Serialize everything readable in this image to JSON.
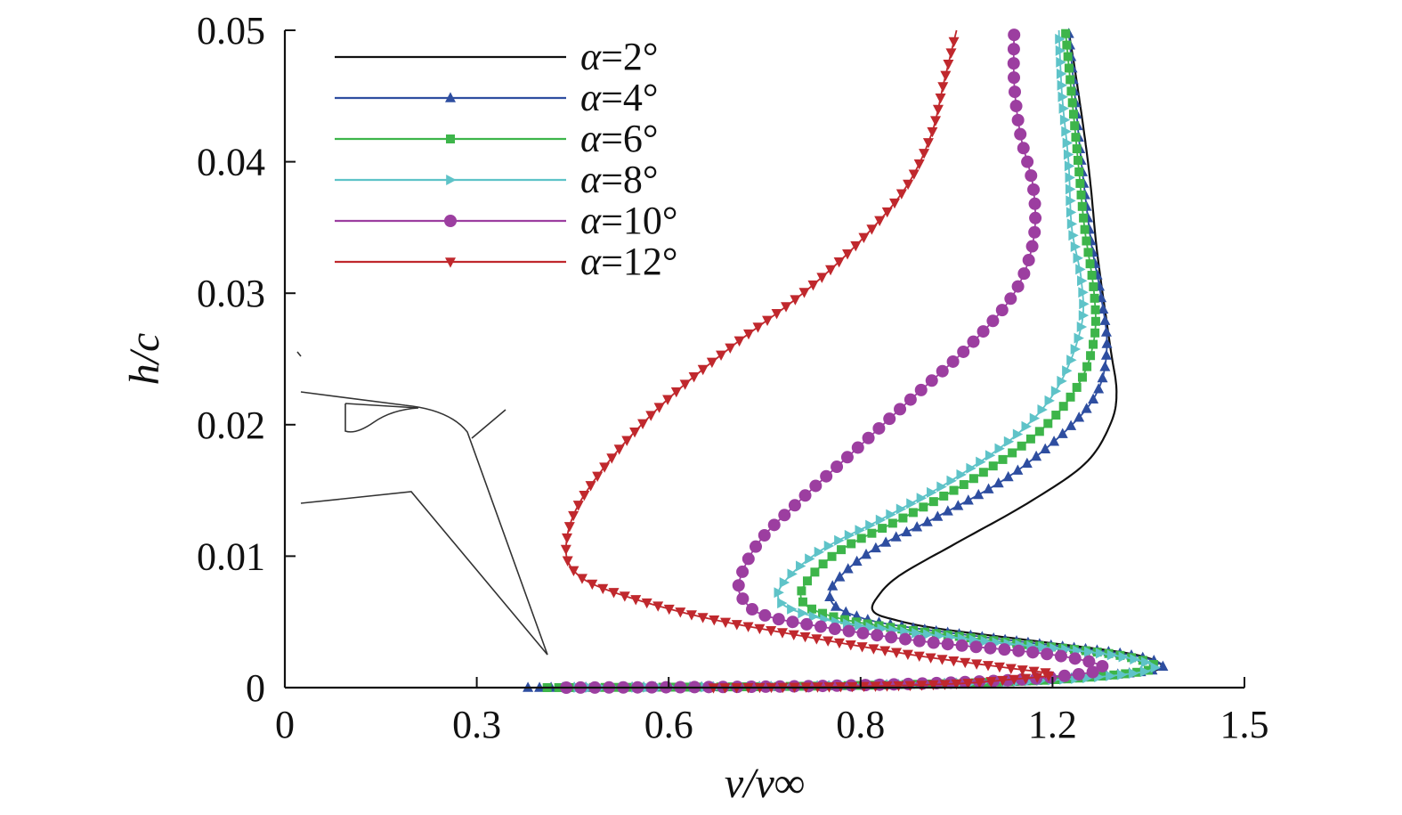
{
  "chart_data": {
    "type": "line",
    "title": "",
    "xlabel": "v/v∞",
    "ylabel": "h/c",
    "xlim": [
      0,
      1.5
    ],
    "ylim": [
      0,
      0.05
    ],
    "x_tick_labels": [
      "0",
      "0.3",
      "0.6",
      "0.8",
      "1.2",
      "1.5"
    ],
    "y_ticks": [
      0,
      0.01,
      0.02,
      0.03,
      0.04,
      0.05
    ],
    "y_tick_labels": [
      "0",
      "0.01",
      "0.02",
      "0.03",
      "0.04",
      "0.05"
    ],
    "grid": false,
    "legend_position": "top-left",
    "series": [
      {
        "name": "α=2°",
        "label_symbol": "α",
        "label_rest": "=2°",
        "color": "#111111",
        "marker": "none",
        "points": [
          [
            0.67,
            0.0
          ],
          [
            1.0,
            0.0001
          ],
          [
            1.2,
            0.0004
          ],
          [
            1.3,
            0.0009
          ],
          [
            1.37,
            0.0015
          ],
          [
            1.33,
            0.0025
          ],
          [
            1.18,
            0.0035
          ],
          [
            1.02,
            0.0045
          ],
          [
            0.95,
            0.0052
          ],
          [
            0.92,
            0.0058
          ],
          [
            0.925,
            0.0068
          ],
          [
            0.96,
            0.0085
          ],
          [
            1.05,
            0.011
          ],
          [
            1.16,
            0.014
          ],
          [
            1.25,
            0.017
          ],
          [
            1.29,
            0.02
          ],
          [
            1.3,
            0.0225
          ],
          [
            1.29,
            0.026
          ],
          [
            1.27,
            0.033
          ],
          [
            1.26,
            0.038
          ],
          [
            1.25,
            0.042
          ],
          [
            1.235,
            0.047
          ],
          [
            1.225,
            0.05
          ]
        ]
      },
      {
        "name": "α=4°",
        "label_symbol": "α",
        "label_rest": "=4°",
        "color": "#2e4ea0",
        "marker": "triangle-up",
        "points": [
          [
            0.38,
            0.0
          ],
          [
            0.8,
            0.0001
          ],
          [
            1.1,
            0.0004
          ],
          [
            1.25,
            0.0008
          ],
          [
            1.37,
            0.0015
          ],
          [
            1.32,
            0.0025
          ],
          [
            1.15,
            0.0035
          ],
          [
            0.96,
            0.0047
          ],
          [
            0.89,
            0.0055
          ],
          [
            0.855,
            0.0065
          ],
          [
            0.86,
            0.008
          ],
          [
            0.92,
            0.0105
          ],
          [
            1.02,
            0.013
          ],
          [
            1.13,
            0.016
          ],
          [
            1.22,
            0.0195
          ],
          [
            1.27,
            0.0225
          ],
          [
            1.285,
            0.026
          ],
          [
            1.275,
            0.03
          ],
          [
            1.26,
            0.034
          ],
          [
            1.245,
            0.04
          ],
          [
            1.235,
            0.045
          ],
          [
            1.225,
            0.05
          ]
        ]
      },
      {
        "name": "α=6°",
        "label_symbol": "α",
        "label_rest": "=6°",
        "color": "#3db54a",
        "marker": "square",
        "points": [
          [
            0.41,
            0.0
          ],
          [
            0.8,
            0.0001
          ],
          [
            1.1,
            0.0004
          ],
          [
            1.26,
            0.0008
          ],
          [
            1.36,
            0.0015
          ],
          [
            1.3,
            0.0025
          ],
          [
            1.12,
            0.0035
          ],
          [
            0.93,
            0.0047
          ],
          [
            0.85,
            0.0055
          ],
          [
            0.81,
            0.0065
          ],
          [
            0.815,
            0.008
          ],
          [
            0.87,
            0.0105
          ],
          [
            0.97,
            0.013
          ],
          [
            1.08,
            0.016
          ],
          [
            1.18,
            0.0195
          ],
          [
            1.24,
            0.023
          ],
          [
            1.265,
            0.0265
          ],
          [
            1.265,
            0.03
          ],
          [
            1.25,
            0.035
          ],
          [
            1.24,
            0.04
          ],
          [
            1.23,
            0.045
          ],
          [
            1.22,
            0.05
          ]
        ]
      },
      {
        "name": "α=8°",
        "label_symbol": "α",
        "label_rest": "=8°",
        "color": "#5ec3c8",
        "marker": "triangle-right",
        "points": [
          [
            0.44,
            0.0
          ],
          [
            0.8,
            0.0001
          ],
          [
            1.1,
            0.0004
          ],
          [
            1.27,
            0.0008
          ],
          [
            1.36,
            0.0015
          ],
          [
            1.29,
            0.0025
          ],
          [
            1.1,
            0.0035
          ],
          [
            0.9,
            0.0047
          ],
          [
            0.82,
            0.0055
          ],
          [
            0.775,
            0.0065
          ],
          [
            0.78,
            0.008
          ],
          [
            0.84,
            0.0105
          ],
          [
            0.94,
            0.013
          ],
          [
            1.05,
            0.016
          ],
          [
            1.15,
            0.0195
          ],
          [
            1.21,
            0.023
          ],
          [
            1.245,
            0.0275
          ],
          [
            1.245,
            0.031
          ],
          [
            1.23,
            0.035
          ],
          [
            1.225,
            0.04
          ],
          [
            1.215,
            0.045
          ],
          [
            1.21,
            0.05
          ]
        ]
      },
      {
        "name": "α=10°",
        "label_symbol": "α",
        "label_rest": "=10°",
        "color": "#9c3ea0",
        "marker": "circle",
        "points": [
          [
            0.44,
            0.0
          ],
          [
            0.8,
            0.0001
          ],
          [
            1.05,
            0.0004
          ],
          [
            1.2,
            0.0008
          ],
          [
            1.28,
            0.0015
          ],
          [
            1.2,
            0.0025
          ],
          [
            1.0,
            0.0035
          ],
          [
            0.83,
            0.0047
          ],
          [
            0.75,
            0.0055
          ],
          [
            0.72,
            0.0065
          ],
          [
            0.71,
            0.008
          ],
          [
            0.74,
            0.011
          ],
          [
            0.8,
            0.014
          ],
          [
            0.89,
            0.018
          ],
          [
            0.98,
            0.022
          ],
          [
            1.07,
            0.026
          ],
          [
            1.14,
            0.03
          ],
          [
            1.17,
            0.034
          ],
          [
            1.17,
            0.038
          ],
          [
            1.15,
            0.042
          ],
          [
            1.14,
            0.046
          ],
          [
            1.14,
            0.05
          ]
        ]
      },
      {
        "name": "α=12°",
        "label_symbol": "α",
        "label_rest": "=12°",
        "color": "#c0282d",
        "marker": "triangle-down",
        "points": [
          [
            0.67,
            0.0
          ],
          [
            0.9,
            0.0001
          ],
          [
            1.05,
            0.0003
          ],
          [
            1.13,
            0.0006
          ],
          [
            1.2,
            0.001
          ],
          [
            1.13,
            0.0015
          ],
          [
            0.98,
            0.0025
          ],
          [
            0.8,
            0.004
          ],
          [
            0.64,
            0.0055
          ],
          [
            0.5,
            0.0075
          ],
          [
            0.45,
            0.009
          ],
          [
            0.44,
            0.011
          ],
          [
            0.46,
            0.014
          ],
          [
            0.52,
            0.018
          ],
          [
            0.6,
            0.022
          ],
          [
            0.7,
            0.026
          ],
          [
            0.81,
            0.03
          ],
          [
            0.9,
            0.034
          ],
          [
            0.97,
            0.038
          ],
          [
            1.01,
            0.042
          ],
          [
            1.03,
            0.046
          ],
          [
            1.05,
            0.05
          ]
        ]
      }
    ],
    "inset_diagram": "airfoil section sketch"
  }
}
